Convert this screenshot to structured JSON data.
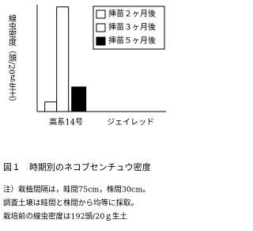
{
  "chart_data": {
    "type": "bar",
    "y_label": "線虫密度（頭/20ｇ生土）",
    "categories": [
      "高系14号",
      "ジェイレッド"
    ],
    "series": [
      {
        "name": "挿苗２ヶ月後",
        "color": "#ffffff",
        "values": [
          9,
          0
        ]
      },
      {
        "name": "挿苗３ヶ月後",
        "color": "#ffffff",
        "values": [
          98,
          0
        ]
      },
      {
        "name": "挿苗５ヶ月後",
        "color": "#000000",
        "values": [
          23,
          0
        ]
      }
    ],
    "ylim": [
      0,
      100
    ],
    "legend": "top-right",
    "caption": "図１　時期別のネコブセンチュウ密度",
    "notes": [
      "注）栽植間隔は，畦間75cm，株間30cm。",
      "調査土壌は畦間と株間から均等に採取。",
      "栽培前の線虫密度は192頭/20ｇ生土"
    ]
  }
}
